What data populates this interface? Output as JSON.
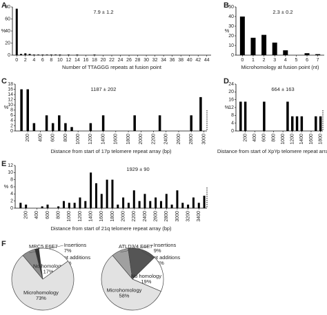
{
  "chart_data": [
    {
      "panel": "A",
      "type": "bar",
      "annotation": "7.9 ± 1.2",
      "xlabel": "Number of TTAGGG repeats at fusion point",
      "ylabel": "%",
      "x": [
        0,
        1,
        2,
        3,
        4,
        5,
        6,
        7,
        8,
        9,
        10,
        11,
        12,
        13,
        14,
        15,
        16,
        17,
        18,
        19,
        20,
        21,
        22,
        23,
        24,
        25,
        26,
        27,
        28,
        29,
        30,
        31,
        32,
        33,
        34,
        35,
        36,
        37,
        38,
        39,
        40,
        41,
        42,
        43,
        44
      ],
      "values": [
        77,
        2,
        3,
        2,
        1,
        1,
        1,
        1,
        1,
        1,
        1,
        0,
        1,
        0,
        1,
        0,
        0,
        0,
        1,
        0,
        0,
        0,
        0,
        0,
        0,
        0,
        0,
        0,
        0,
        0,
        0,
        0,
        0,
        0,
        0,
        0,
        0,
        0,
        0,
        0,
        0,
        0,
        0,
        0,
        0
      ],
      "xlim": [
        -1,
        45
      ],
      "xticks": [
        0,
        2,
        4,
        6,
        8,
        10,
        12,
        14,
        16,
        18,
        20,
        22,
        24,
        26,
        28,
        30,
        32,
        34,
        36,
        38,
        40,
        42,
        44
      ],
      "ylim": [
        0,
        80
      ],
      "yticks": [
        0,
        20,
        40,
        60,
        80
      ],
      "color": "#000000"
    },
    {
      "panel": "B",
      "type": "bar",
      "annotation": "2.3 ± 0.2",
      "xlabel": "Microhomology at fusion point (nt)",
      "ylabel": "%",
      "x": [
        0,
        1,
        2,
        3,
        4,
        5,
        6,
        7
      ],
      "values": [
        40,
        18,
        21,
        13,
        5,
        0,
        2,
        1
      ],
      "xlim": [
        -0.6,
        7.6
      ],
      "xticks": [
        0,
        1,
        2,
        3,
        4,
        5,
        6,
        7
      ],
      "ylim": [
        0,
        50
      ],
      "yticks": [
        0,
        10,
        20,
        30,
        40,
        50
      ],
      "color": "#000000"
    },
    {
      "panel": "C",
      "type": "bar",
      "annotation": "1187 ± 202",
      "xlabel": "Distance from start of 17p telomere repeat array (bp)",
      "ylabel": "%",
      "x": [
        100,
        200,
        300,
        500,
        600,
        700,
        800,
        900,
        1200,
        1400,
        1900,
        2300,
        2800,
        2950
      ],
      "values": [
        16,
        16,
        3,
        6,
        3,
        6,
        3,
        1.5,
        3,
        6,
        6,
        6,
        6,
        13
      ],
      "xlim": [
        0,
        3050
      ],
      "xticks": [
        200,
        400,
        600,
        800,
        1000,
        1200,
        1400,
        1600,
        1800,
        2000,
        2200,
        2400,
        2600,
        2800,
        3000
      ],
      "ylim": [
        0,
        18
      ],
      "yticks": [
        0,
        2,
        4,
        6,
        8,
        10,
        12,
        14,
        16,
        18
      ],
      "color": "#000000"
    },
    {
      "panel": "D",
      "type": "bar",
      "annotation": "664 ± 163",
      "xlabel": "Distance from start of XpYp telomere repeat array (bp)",
      "ylabel": "%",
      "x": [
        100,
        200,
        600,
        1100,
        1200,
        1300,
        1400,
        1700,
        1800
      ],
      "values": [
        15,
        15,
        15,
        15,
        7.5,
        7.5,
        7.5,
        7.5,
        7.5
      ],
      "xlim": [
        0,
        1850
      ],
      "xticks": [
        200,
        400,
        600,
        800,
        1000,
        1200,
        1400,
        1600,
        1800
      ],
      "ylim": [
        0,
        24
      ],
      "yticks": [
        0,
        4,
        8,
        12,
        16,
        20,
        24
      ],
      "color": "#000000"
    },
    {
      "panel": "E",
      "type": "bar",
      "annotation": "1929 ± 90",
      "xlabel": "Distance from start of 21q telomere repeat array (bp)",
      "ylabel": "%",
      "x": [
        100,
        200,
        300,
        400,
        500,
        600,
        700,
        800,
        900,
        1000,
        1100,
        1200,
        1300,
        1400,
        1500,
        1600,
        1700,
        1800,
        1900,
        2000,
        2100,
        2200,
        2300,
        2400,
        2500,
        2600,
        2700,
        2800,
        2900,
        3000,
        3100,
        3200,
        3300,
        3400,
        3500
      ],
      "values": [
        1.5,
        1,
        0,
        0,
        0.5,
        1,
        0,
        0.5,
        2,
        1.5,
        1.5,
        3,
        2,
        10,
        7,
        4,
        8,
        8,
        1,
        3,
        1.5,
        5,
        2,
        4,
        2,
        3,
        2,
        4,
        1,
        5,
        1.5,
        1,
        3,
        1.5,
        3.5
      ],
      "xlim": [
        0,
        3550
      ],
      "xticks": [
        200,
        400,
        600,
        800,
        1000,
        1200,
        1400,
        1600,
        1800,
        2000,
        2200,
        2400,
        2600,
        2800,
        3000,
        3200,
        3400
      ],
      "ylim": [
        0,
        12
      ],
      "yticks": [
        0,
        2,
        4,
        6,
        8,
        10,
        12
      ],
      "color": "#000000"
    },
    {
      "panel": "F",
      "type": "pie",
      "title": "MRC5 E6E7",
      "categories": [
        "Insertions",
        "nt additions",
        "No homology",
        "Microhomology"
      ],
      "values": [
        7,
        2,
        17,
        73
      ],
      "value_labels": [
        "7%",
        "2%",
        "17%",
        "73%"
      ],
      "colors": [
        "#8c8c8c",
        "#333333",
        "#ffffff",
        "#e2e2e2"
      ]
    },
    {
      "type": "pie",
      "title": "ATLD3/4 E6E7",
      "categories": [
        "Insertions",
        "nt additions",
        "No homology",
        "Microhomology"
      ],
      "values": [
        9,
        15,
        19,
        58
      ],
      "value_labels": [
        "9%",
        "15%",
        "19%",
        "58%"
      ],
      "colors": [
        "#a0a0a0",
        "#555555",
        "#ffffff",
        "#e2e2e2"
      ]
    }
  ]
}
